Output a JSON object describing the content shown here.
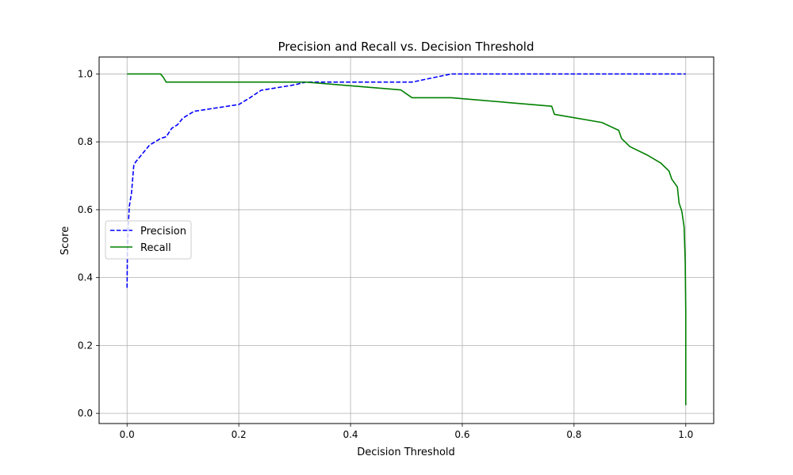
{
  "chart_data": {
    "type": "line",
    "title": "Precision and Recall vs. Decision Threshold",
    "xlabel": "Decision Threshold",
    "ylabel": "Score",
    "xlim": [
      -0.05,
      1.05
    ],
    "ylim": [
      -0.03,
      1.05
    ],
    "xticks": [
      "0.0",
      "0.2",
      "0.4",
      "0.6",
      "0.8",
      "1.0"
    ],
    "yticks": [
      "0.0",
      "0.2",
      "0.4",
      "0.6",
      "0.8",
      "1.0"
    ],
    "grid": true,
    "legend_position": "center-left",
    "series": [
      {
        "name": "Precision",
        "color": "#0000ff",
        "style": "dashed",
        "x": [
          0.0,
          0.0005,
          0.001,
          0.002,
          0.004,
          0.006,
          0.008,
          0.012,
          0.015,
          0.02,
          0.03,
          0.04,
          0.05,
          0.06,
          0.07,
          0.08,
          0.09,
          0.1,
          0.12,
          0.2,
          0.22,
          0.24,
          0.3,
          0.32,
          0.4,
          0.5,
          0.51,
          0.58,
          0.6,
          1.0
        ],
        "y": [
          0.37,
          0.45,
          0.5,
          0.55,
          0.61,
          0.63,
          0.65,
          0.73,
          0.74,
          0.75,
          0.77,
          0.79,
          0.8,
          0.81,
          0.815,
          0.84,
          0.85,
          0.87,
          0.89,
          0.91,
          0.93,
          0.952,
          0.968,
          0.976,
          0.976,
          0.976,
          0.976,
          1.0,
          1.0,
          1.0
        ]
      },
      {
        "name": "Recall",
        "color": "#008000",
        "style": "solid",
        "x": [
          0.0,
          0.06,
          0.065,
          0.07,
          0.1,
          0.32,
          0.49,
          0.51,
          0.58,
          0.76,
          0.765,
          0.85,
          0.88,
          0.885,
          0.9,
          0.93,
          0.955,
          0.97,
          0.975,
          0.985,
          0.988,
          0.993,
          0.997,
          0.999,
          1.0,
          1.0
        ],
        "y": [
          1.0,
          1.0,
          0.99,
          0.976,
          0.976,
          0.976,
          0.953,
          0.93,
          0.93,
          0.905,
          0.881,
          0.857,
          0.834,
          0.81,
          0.786,
          0.762,
          0.738,
          0.714,
          0.69,
          0.667,
          0.62,
          0.595,
          0.55,
          0.45,
          0.3,
          0.024
        ]
      }
    ]
  }
}
